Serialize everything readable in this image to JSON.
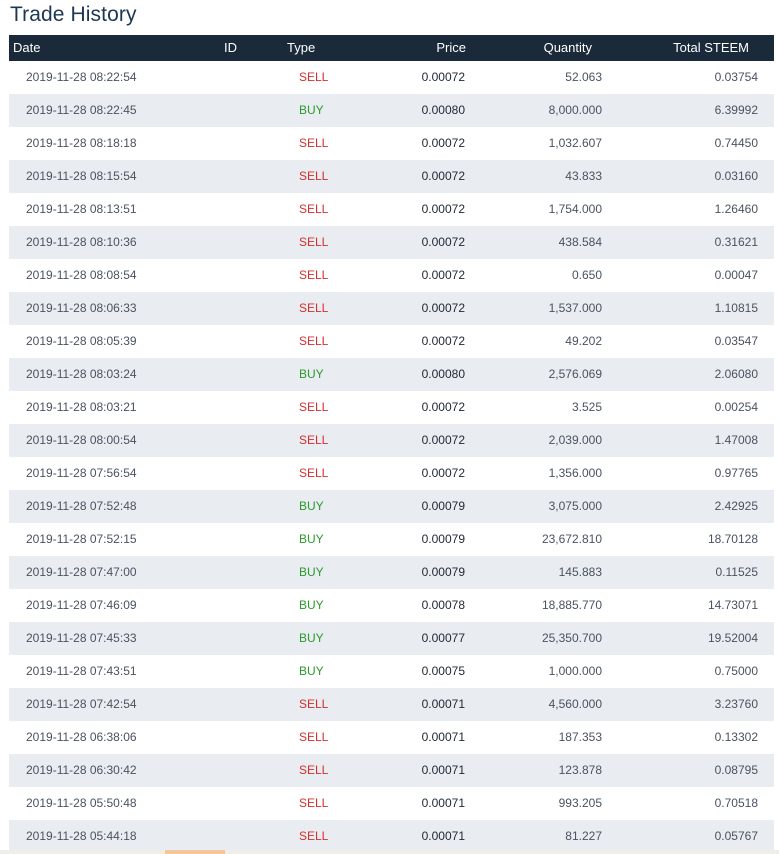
{
  "title": "Trade History",
  "columns": {
    "date": "Date",
    "id": "ID",
    "type": "Type",
    "price": "Price",
    "quantity": "Quantity",
    "total": "Total STEEM"
  },
  "rows": [
    {
      "date": "2019-11-28 08:22:54",
      "type": "SELL",
      "price": "0.00072",
      "quantity": "52.063",
      "total": "0.03754"
    },
    {
      "date": "2019-11-28 08:22:45",
      "type": "BUY",
      "price": "0.00080",
      "quantity": "8,000.000",
      "total": "6.39992"
    },
    {
      "date": "2019-11-28 08:18:18",
      "type": "SELL",
      "price": "0.00072",
      "quantity": "1,032.607",
      "total": "0.74450"
    },
    {
      "date": "2019-11-28 08:15:54",
      "type": "SELL",
      "price": "0.00072",
      "quantity": "43.833",
      "total": "0.03160"
    },
    {
      "date": "2019-11-28 08:13:51",
      "type": "SELL",
      "price": "0.00072",
      "quantity": "1,754.000",
      "total": "1.26460"
    },
    {
      "date": "2019-11-28 08:10:36",
      "type": "SELL",
      "price": "0.00072",
      "quantity": "438.584",
      "total": "0.31621"
    },
    {
      "date": "2019-11-28 08:08:54",
      "type": "SELL",
      "price": "0.00072",
      "quantity": "0.650",
      "total": "0.00047"
    },
    {
      "date": "2019-11-28 08:06:33",
      "type": "SELL",
      "price": "0.00072",
      "quantity": "1,537.000",
      "total": "1.10815"
    },
    {
      "date": "2019-11-28 08:05:39",
      "type": "SELL",
      "price": "0.00072",
      "quantity": "49.202",
      "total": "0.03547"
    },
    {
      "date": "2019-11-28 08:03:24",
      "type": "BUY",
      "price": "0.00080",
      "quantity": "2,576.069",
      "total": "2.06080"
    },
    {
      "date": "2019-11-28 08:03:21",
      "type": "SELL",
      "price": "0.00072",
      "quantity": "3.525",
      "total": "0.00254"
    },
    {
      "date": "2019-11-28 08:00:54",
      "type": "SELL",
      "price": "0.00072",
      "quantity": "2,039.000",
      "total": "1.47008"
    },
    {
      "date": "2019-11-28 07:56:54",
      "type": "SELL",
      "price": "0.00072",
      "quantity": "1,356.000",
      "total": "0.97765"
    },
    {
      "date": "2019-11-28 07:52:48",
      "type": "BUY",
      "price": "0.00079",
      "quantity": "3,075.000",
      "total": "2.42925"
    },
    {
      "date": "2019-11-28 07:52:15",
      "type": "BUY",
      "price": "0.00079",
      "quantity": "23,672.810",
      "total": "18.70128"
    },
    {
      "date": "2019-11-28 07:47:00",
      "type": "BUY",
      "price": "0.00079",
      "quantity": "145.883",
      "total": "0.11525"
    },
    {
      "date": "2019-11-28 07:46:09",
      "type": "BUY",
      "price": "0.00078",
      "quantity": "18,885.770",
      "total": "14.73071"
    },
    {
      "date": "2019-11-28 07:45:33",
      "type": "BUY",
      "price": "0.00077",
      "quantity": "25,350.700",
      "total": "19.52004"
    },
    {
      "date": "2019-11-28 07:43:51",
      "type": "BUY",
      "price": "0.00075",
      "quantity": "1,000.000",
      "total": "0.75000"
    },
    {
      "date": "2019-11-28 07:42:54",
      "type": "SELL",
      "price": "0.00071",
      "quantity": "4,560.000",
      "total": "3.23760"
    },
    {
      "date": "2019-11-28 06:38:06",
      "type": "SELL",
      "price": "0.00071",
      "quantity": "187.353",
      "total": "0.13302"
    },
    {
      "date": "2019-11-28 06:30:42",
      "type": "SELL",
      "price": "0.00071",
      "quantity": "123.878",
      "total": "0.08795"
    },
    {
      "date": "2019-11-28 05:50:48",
      "type": "SELL",
      "price": "0.00071",
      "quantity": "993.205",
      "total": "0.70518"
    },
    {
      "date": "2019-11-28 05:44:18",
      "type": "SELL",
      "price": "0.00071",
      "quantity": "81.227",
      "total": "0.05767"
    }
  ],
  "colors": {
    "header_bg": "#1a2a3a",
    "sell": "#d62e2e",
    "buy": "#2a9a2a",
    "alt_row": "#e9edf1",
    "title": "#1d3850"
  }
}
